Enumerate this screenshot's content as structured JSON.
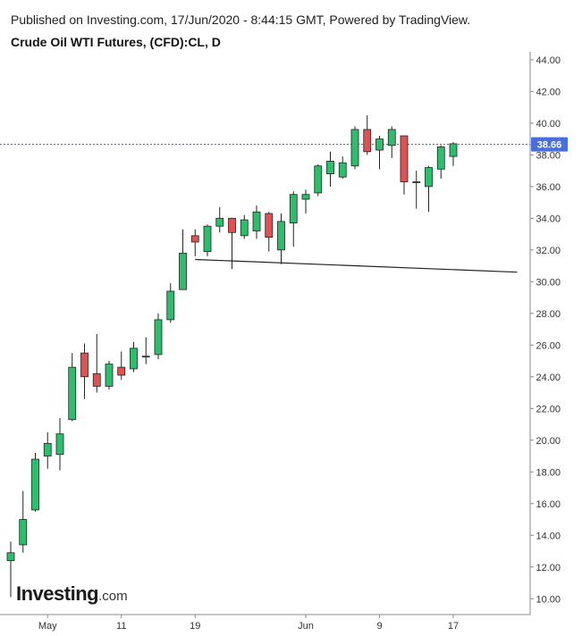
{
  "header": {
    "published": "Published on Investing.com, 17/Jun/2020 - 8:44:15 GMT, Powered by TradingView.",
    "title": "Crude Oil WTI Futures, (CFD):CL, D"
  },
  "logo": {
    "main": "Investing",
    "suffix": ".com"
  },
  "colors": {
    "up": "#2ebd6b",
    "down": "#e05151",
    "price_tag": "#4a6fdc",
    "price_line": "#3a5fcf"
  },
  "chart_data": {
    "type": "candlestick",
    "ylim": [
      9.0,
      44.5
    ],
    "y_ticks": [
      "44.00",
      "42.00",
      "40.00",
      "38.00",
      "36.00",
      "34.00",
      "32.00",
      "30.00",
      "28.00",
      "26.00",
      "24.00",
      "22.00",
      "20.00",
      "18.00",
      "16.00",
      "14.00",
      "12.00",
      "10.00"
    ],
    "x_labels": [
      {
        "label": "May",
        "index": 3
      },
      {
        "label": "11",
        "index": 9
      },
      {
        "label": "19",
        "index": 15
      },
      {
        "label": "Jun",
        "index": 24
      },
      {
        "label": "9",
        "index": 30
      },
      {
        "label": "17",
        "index": 36
      }
    ],
    "last_price": "38.66",
    "trendline": {
      "start_index": 15,
      "start_value": 31.4,
      "end_index": 41.2,
      "end_value": 30.6
    },
    "candles": [
      {
        "o": 12.4,
        "h": 13.6,
        "l": 10.1,
        "c": 12.9
      },
      {
        "o": 13.4,
        "h": 16.8,
        "l": 12.9,
        "c": 15.0
      },
      {
        "o": 15.6,
        "h": 19.2,
        "l": 15.5,
        "c": 18.8
      },
      {
        "o": 19.0,
        "h": 20.5,
        "l": 18.2,
        "c": 19.8
      },
      {
        "o": 19.1,
        "h": 21.4,
        "l": 18.1,
        "c": 20.4
      },
      {
        "o": 21.3,
        "h": 25.5,
        "l": 21.2,
        "c": 24.6
      },
      {
        "o": 25.5,
        "h": 26.1,
        "l": 22.6,
        "c": 24.0
      },
      {
        "o": 24.2,
        "h": 26.7,
        "l": 23.0,
        "c": 23.4
      },
      {
        "o": 23.4,
        "h": 25.0,
        "l": 23.2,
        "c": 24.8
      },
      {
        "o": 24.6,
        "h": 25.6,
        "l": 23.8,
        "c": 24.1
      },
      {
        "o": 24.5,
        "h": 26.2,
        "l": 24.3,
        "c": 25.8
      },
      {
        "o": 25.3,
        "h": 26.5,
        "l": 24.8,
        "c": 25.3
      },
      {
        "o": 25.4,
        "h": 28.0,
        "l": 25.1,
        "c": 27.6
      },
      {
        "o": 27.6,
        "h": 29.9,
        "l": 27.4,
        "c": 29.4
      },
      {
        "o": 29.5,
        "h": 33.3,
        "l": 29.5,
        "c": 31.8
      },
      {
        "o": 32.9,
        "h": 33.3,
        "l": 31.6,
        "c": 32.5
      },
      {
        "o": 31.9,
        "h": 33.6,
        "l": 31.6,
        "c": 33.5
      },
      {
        "o": 33.5,
        "h": 34.7,
        "l": 33.1,
        "c": 34.0
      },
      {
        "o": 34.0,
        "h": 34.0,
        "l": 30.8,
        "c": 33.1
      },
      {
        "o": 32.9,
        "h": 34.2,
        "l": 32.7,
        "c": 33.9
      },
      {
        "o": 33.2,
        "h": 34.8,
        "l": 32.7,
        "c": 34.4
      },
      {
        "o": 34.3,
        "h": 34.4,
        "l": 31.9,
        "c": 32.8
      },
      {
        "o": 32.0,
        "h": 34.3,
        "l": 31.1,
        "c": 33.8
      },
      {
        "o": 33.7,
        "h": 35.7,
        "l": 32.2,
        "c": 35.5
      },
      {
        "o": 35.2,
        "h": 35.8,
        "l": 34.3,
        "c": 35.5
      },
      {
        "o": 35.6,
        "h": 37.4,
        "l": 35.4,
        "c": 37.3
      },
      {
        "o": 36.8,
        "h": 38.2,
        "l": 36.0,
        "c": 37.6
      },
      {
        "o": 36.6,
        "h": 37.9,
        "l": 36.5,
        "c": 37.5
      },
      {
        "o": 37.3,
        "h": 39.8,
        "l": 37.1,
        "c": 39.6
      },
      {
        "o": 39.6,
        "h": 40.5,
        "l": 38.0,
        "c": 38.2
      },
      {
        "o": 38.3,
        "h": 39.2,
        "l": 37.1,
        "c": 39.0
      },
      {
        "o": 38.6,
        "h": 39.8,
        "l": 37.8,
        "c": 39.6
      },
      {
        "o": 39.2,
        "h": 39.2,
        "l": 35.5,
        "c": 36.3
      },
      {
        "o": 36.3,
        "h": 37.0,
        "l": 34.6,
        "c": 36.3
      },
      {
        "o": 36.0,
        "h": 37.3,
        "l": 34.4,
        "c": 37.2
      },
      {
        "o": 37.1,
        "h": 38.6,
        "l": 36.5,
        "c": 38.5
      },
      {
        "o": 37.9,
        "h": 38.8,
        "l": 37.3,
        "c": 38.7
      }
    ]
  }
}
